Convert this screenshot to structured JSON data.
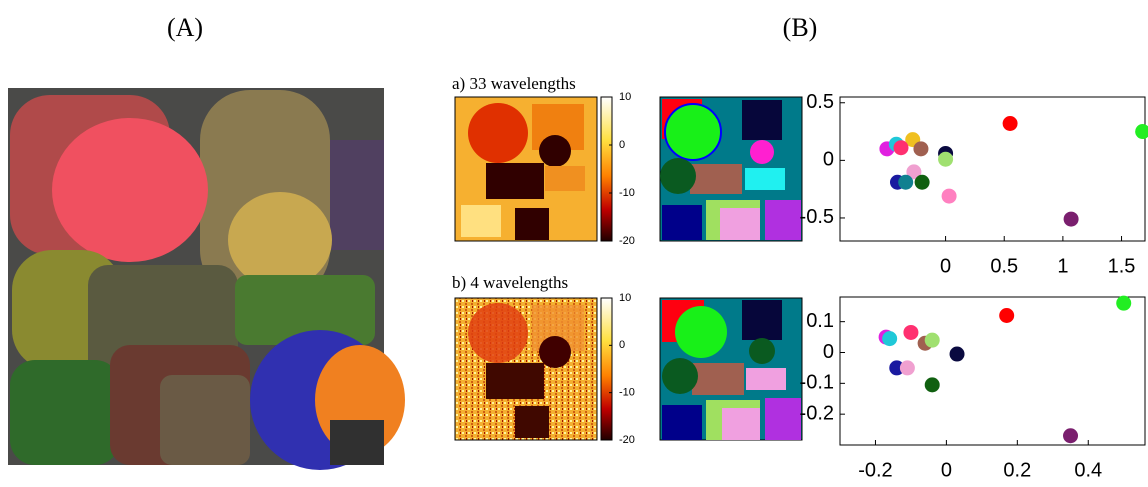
{
  "panel_labels": [
    "(A)",
    "(B)"
  ],
  "captions": [
    "a) 33 wavelengths",
    "b) 4 wavelengths"
  ],
  "colorbars": [
    {
      "lim": [
        -20,
        10
      ],
      "ticks": [
        10,
        0,
        -10,
        -20
      ]
    },
    {
      "lim": [
        -20,
        10
      ],
      "ticks": [
        10,
        0,
        -10,
        -20
      ]
    }
  ],
  "chart_data": [
    {
      "type": "scatter",
      "x": [
        0.55,
        1.68,
        1.07,
        -0.5,
        -0.42,
        -0.28,
        -0.21,
        -0.38,
        0.0,
        0.0,
        0.03,
        -0.27,
        -0.41,
        -0.34,
        -0.2
      ],
      "values": [
        0.32,
        0.25,
        -0.51,
        0.1,
        0.14,
        0.18,
        0.1,
        0.11,
        0.06,
        0.01,
        -0.31,
        -0.1,
        -0.19,
        -0.19,
        -0.19
      ],
      "colors": [
        "#ff0000",
        "#22ee22",
        "#7a1f6e",
        "#e020e0",
        "#20c8d8",
        "#f0c020",
        "#a06050",
        "#ff3070",
        "#0a0a40",
        "#a0e070",
        "#ff80c0",
        "#f0a0d0",
        "#1a1aa0",
        "#108090",
        "#106010"
      ],
      "xlim": [
        -0.9,
        1.7
      ],
      "ylim": [
        -0.7,
        0.55
      ],
      "xticks": [
        0,
        0.5,
        1,
        1.5
      ],
      "yticks": [
        0.5,
        0,
        -0.5
      ]
    },
    {
      "type": "scatter",
      "x": [
        0.5,
        0.17,
        0.35,
        -0.1,
        -0.17,
        -0.16,
        -0.06,
        -0.04,
        0.03,
        -0.14,
        -0.11,
        -0.04
      ],
      "values": [
        0.16,
        0.12,
        -0.27,
        0.065,
        0.05,
        0.045,
        0.03,
        0.04,
        -0.005,
        -0.05,
        -0.05,
        -0.105
      ],
      "colors": [
        "#22ee22",
        "#ff0000",
        "#7a1f6e",
        "#ff3070",
        "#e020e0",
        "#20c8d8",
        "#a06050",
        "#a0e070",
        "#0a0a40",
        "#1a1aa0",
        "#f0a0d0",
        "#106010"
      ],
      "xlim": [
        -0.3,
        0.56
      ],
      "ylim": [
        -0.3,
        0.18
      ],
      "xticks": [
        -0.2,
        0,
        0.2,
        0.4
      ],
      "yticks": [
        0.1,
        0,
        -0.1,
        -0.2
      ]
    }
  ]
}
